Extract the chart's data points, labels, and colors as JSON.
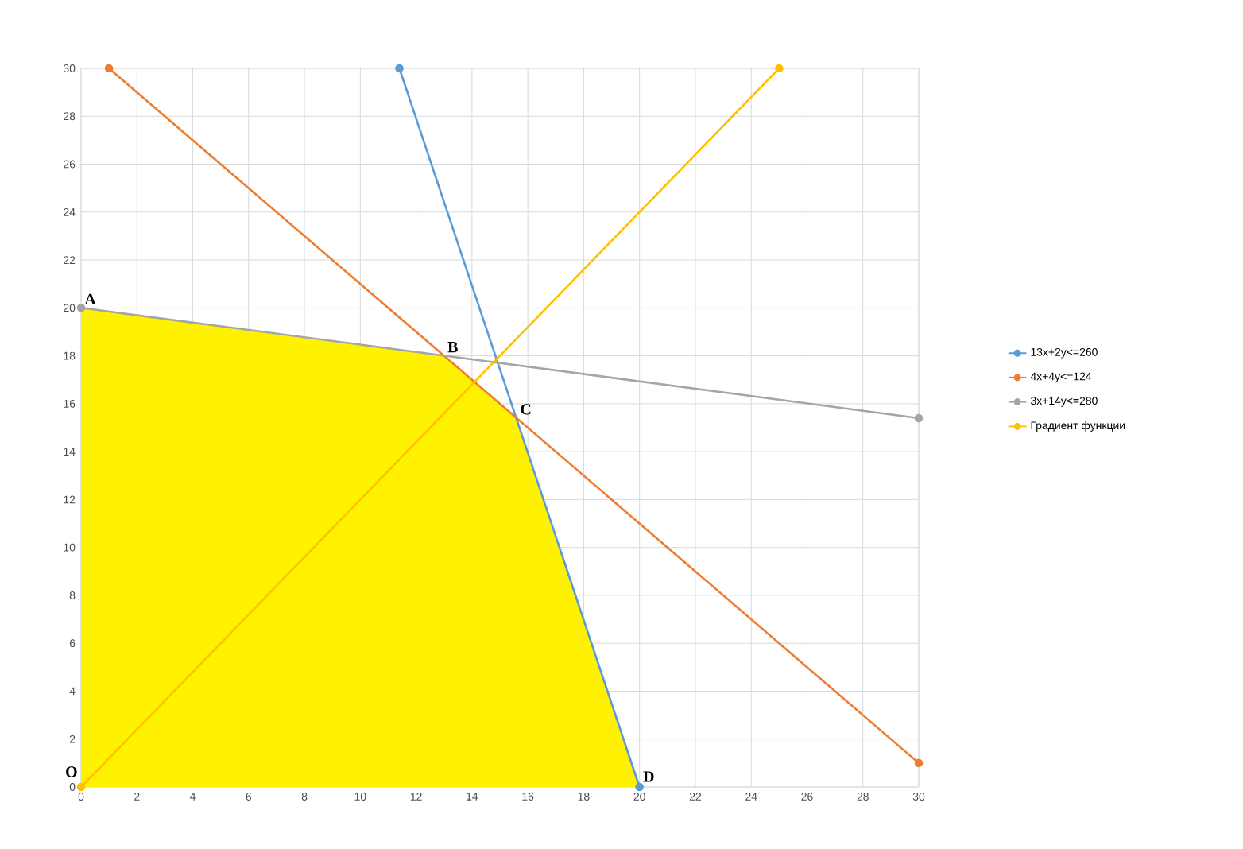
{
  "chart_data": {
    "type": "line",
    "xlim": [
      0,
      30
    ],
    "ylim": [
      0,
      30
    ],
    "xticks": [
      0,
      2,
      4,
      6,
      8,
      10,
      12,
      14,
      16,
      18,
      20,
      22,
      24,
      26,
      28,
      30
    ],
    "yticks": [
      0,
      2,
      4,
      6,
      8,
      10,
      12,
      14,
      16,
      18,
      20,
      22,
      24,
      26,
      28,
      30
    ],
    "grid": true,
    "legend": "right",
    "marker": "circle",
    "series": [
      {
        "type": "area",
        "marker": "none",
        "color": "#fff200",
        "x": [
          0,
          0,
          13,
          15.6,
          20
        ],
        "values": [
          0,
          20,
          18,
          15.4,
          0
        ]
      },
      {
        "name": "13x+2y<=260",
        "color": "#5b9bd5",
        "x": [
          11.4,
          20
        ],
        "values": [
          30,
          0
        ]
      },
      {
        "name": "4x+4y<=124",
        "color": "#ed7d31",
        "x": [
          1,
          30
        ],
        "values": [
          30,
          1
        ]
      },
      {
        "name": "3x+14y<=280",
        "color": "#a5a5a5",
        "x": [
          0,
          30
        ],
        "values": [
          20,
          15.4
        ]
      },
      {
        "name": "Градиент функции",
        "color": "#ffc000",
        "x": [
          0,
          25
        ],
        "values": [
          0,
          30
        ]
      }
    ],
    "annotations": [
      {
        "text": "A",
        "x": 0,
        "y": 20
      },
      {
        "text": "B",
        "x": 13,
        "y": 18
      },
      {
        "text": "C",
        "x": 15.6,
        "y": 15.4
      },
      {
        "text": "D",
        "x": 20,
        "y": 0
      },
      {
        "text": "O",
        "x": 0,
        "y": 0
      }
    ]
  }
}
